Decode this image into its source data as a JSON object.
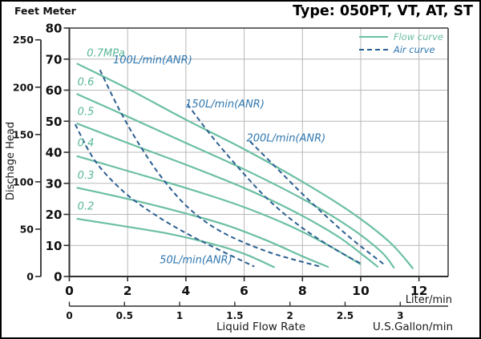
{
  "header": {
    "units_label": "Feet Meter",
    "title": "Type: 050PT, VT, AT, ST"
  },
  "legend": {
    "flow_label": "Flow curve",
    "air_label": "Air curve"
  },
  "colors": {
    "flow_curve": "#6cbfa4",
    "air_curve": "#2c5f92",
    "air_text": "#2f77b0",
    "flow_text": "#58b697",
    "grid": "#b8b8b8",
    "frame": "#555555",
    "axis": "#2f2f2f",
    "text": "#111111"
  },
  "chart_data": {
    "type": "line",
    "title": "Type: 050PT, VT, AT, ST",
    "xlabel": "Liquid Flow Rate",
    "ylabel": "Dischage Head",
    "units_header": "Feet Meter",
    "grid": true,
    "legend_position": "top-right",
    "legend_entries": [
      {
        "label": "Flow curve",
        "style": "solid",
        "color": "#6cbfa4"
      },
      {
        "label": "Air curve",
        "style": "dashed",
        "color": "#2c5f92"
      }
    ],
    "x_axes": [
      {
        "unit": "Liter/min",
        "min": 0,
        "max": 13,
        "ticks": [
          0,
          2,
          4,
          6,
          8,
          10,
          12
        ]
      },
      {
        "unit": "U.S.Gallon/min",
        "min": 0,
        "max": 3.43,
        "ticks": [
          "0",
          "0.5",
          "1",
          "1.5",
          "2",
          "2.5",
          "3"
        ]
      }
    ],
    "y_axes": [
      {
        "unit": "Meter",
        "min": 0,
        "max": 80,
        "ticks": [
          0,
          10,
          20,
          30,
          40,
          50,
          60,
          70,
          80
        ]
      },
      {
        "unit": "Feet",
        "min": 0,
        "max": 250,
        "ticks": [
          0,
          50,
          100,
          150,
          200,
          250
        ]
      }
    ],
    "series": [
      {
        "name": "0.7MPa",
        "group": "flow",
        "label_pos": [
          0.6,
          70.8
        ],
        "points": [
          [
            0.25,
            68.6
          ],
          [
            2,
            60.5
          ],
          [
            4,
            50.5
          ],
          [
            6,
            41
          ],
          [
            8,
            30.5
          ],
          [
            9.7,
            20.5
          ],
          [
            11,
            11
          ],
          [
            11.8,
            2.5
          ]
        ]
      },
      {
        "name": "0.6",
        "group": "flow",
        "label_pos": [
          0.28,
          61.5
        ],
        "points": [
          [
            0.25,
            58.8
          ],
          [
            2,
            51.5
          ],
          [
            4,
            43
          ],
          [
            6,
            34.5
          ],
          [
            8,
            25
          ],
          [
            9.6,
            16
          ],
          [
            10.7,
            8
          ],
          [
            11.15,
            2.7
          ]
        ]
      },
      {
        "name": "0.5",
        "group": "flow",
        "label_pos": [
          0.28,
          52
        ],
        "points": [
          [
            0.25,
            49.3
          ],
          [
            2,
            43
          ],
          [
            4,
            36
          ],
          [
            6,
            28.5
          ],
          [
            7.7,
            21
          ],
          [
            9.2,
            13
          ],
          [
            10.2,
            6
          ],
          [
            10.6,
            3
          ]
        ]
      },
      {
        "name": "0.4",
        "group": "flow",
        "label_pos": [
          0.28,
          42
        ],
        "points": [
          [
            0.25,
            38.8
          ],
          [
            2,
            34
          ],
          [
            4,
            28.5
          ],
          [
            5.8,
            23
          ],
          [
            7.4,
            17
          ],
          [
            8.8,
            10.5
          ],
          [
            10,
            3.9
          ]
        ]
      },
      {
        "name": "0.3",
        "group": "flow",
        "label_pos": [
          0.28,
          31.5
        ],
        "points": [
          [
            0.25,
            28.6
          ],
          [
            2,
            25
          ],
          [
            3.8,
            20.8
          ],
          [
            5.4,
            16.5
          ],
          [
            6.8,
            11.5
          ],
          [
            8,
            6.5
          ],
          [
            8.9,
            3
          ]
        ]
      },
      {
        "name": "0.2",
        "group": "flow",
        "label_pos": [
          0.28,
          21.5
        ],
        "points": [
          [
            0.25,
            18.6
          ],
          [
            1.8,
            16.3
          ],
          [
            3.4,
            13.8
          ],
          [
            4.9,
            10.5
          ],
          [
            6,
            7.3
          ],
          [
            7.05,
            2.9
          ]
        ]
      },
      {
        "name": "50L/min(ANR)",
        "group": "air",
        "label_pos": [
          3.1,
          4.3
        ],
        "points": [
          [
            0.2,
            49
          ],
          [
            0.9,
            37
          ],
          [
            1.9,
            27
          ],
          [
            3.0,
            19.5
          ],
          [
            4.1,
            13.5
          ],
          [
            5.2,
            8.3
          ],
          [
            6.35,
            3.2
          ]
        ]
      },
      {
        "name": "100L/min(ANR)",
        "group": "air",
        "label_pos": [
          1.5,
          68.6
        ],
        "points": [
          [
            1.05,
            66.5
          ],
          [
            1.7,
            54
          ],
          [
            2.4,
            42.5
          ],
          [
            3.2,
            31.5
          ],
          [
            4.1,
            22
          ],
          [
            5.2,
            14.5
          ],
          [
            6.8,
            8
          ],
          [
            8.6,
            3.2
          ]
        ]
      },
      {
        "name": "150L/min(ANR)",
        "group": "air",
        "label_pos": [
          3.98,
          54.5
        ],
        "points": [
          [
            4.05,
            55.5
          ],
          [
            4.9,
            45
          ],
          [
            5.9,
            34
          ],
          [
            6.8,
            25
          ],
          [
            7.8,
            17
          ],
          [
            8.9,
            10
          ],
          [
            10.05,
            3.9
          ]
        ]
      },
      {
        "name": "200L/min(ANR)",
        "group": "air",
        "label_pos": [
          6.08,
          43.5
        ],
        "points": [
          [
            6.2,
            43.5
          ],
          [
            7.0,
            36
          ],
          [
            7.9,
            27.5
          ],
          [
            8.8,
            19.5
          ],
          [
            9.7,
            12
          ],
          [
            10.8,
            3.9
          ]
        ]
      }
    ]
  }
}
